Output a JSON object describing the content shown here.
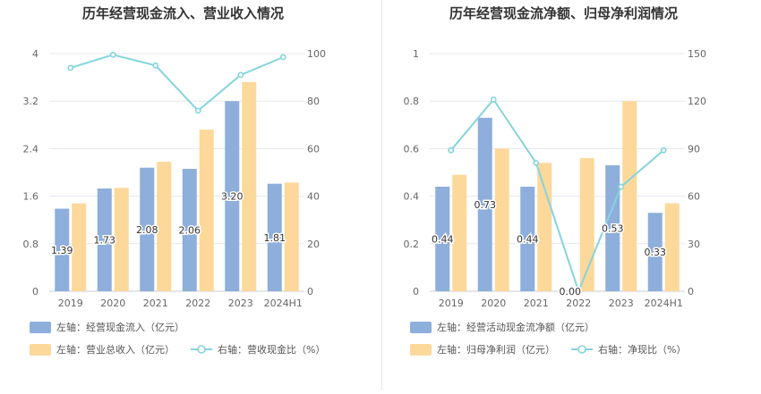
{
  "chart_data": [
    {
      "type": "bar",
      "title": "历年经营现金流入、营业收入情况",
      "categories": [
        "2019",
        "2020",
        "2021",
        "2022",
        "2023",
        "2024H1"
      ],
      "y_left_ticks": [
        "0",
        "0.8",
        "1.6",
        "2.4",
        "3.2",
        "4"
      ],
      "y_right_ticks": [
        "0",
        "20",
        "40",
        "60",
        "80",
        "100"
      ],
      "ylim_left": [
        0,
        4
      ],
      "ylim_right": [
        0,
        100
      ],
      "series": [
        {
          "name": "左轴：经营现金流入（亿元）",
          "kind": "bar",
          "axis": "left",
          "color": "#8eaedb",
          "values": [
            1.39,
            1.73,
            2.08,
            2.06,
            3.2,
            1.81
          ],
          "labels": [
            "1.39",
            "1.73",
            "2.08",
            "2.06",
            "3.20",
            "1.81"
          ]
        },
        {
          "name": "左轴：营业总收入（亿元）",
          "kind": "bar",
          "axis": "left",
          "color": "#fcd89b",
          "values": [
            1.48,
            1.74,
            2.18,
            2.72,
            3.52,
            1.83
          ]
        },
        {
          "name": "右轴：营收现金比（%）",
          "kind": "line",
          "axis": "right",
          "color": "#85d4dd",
          "values": [
            94,
            99.5,
            95,
            76,
            91,
            98.5
          ]
        }
      ],
      "grid": true,
      "legend_position": "bottom"
    },
    {
      "type": "bar",
      "title": "历年经营现金流净额、归母净利润情况",
      "categories": [
        "2019",
        "2020",
        "2021",
        "2022",
        "2023",
        "2024H1"
      ],
      "y_left_ticks": [
        "0",
        "0.2",
        "0.4",
        "0.6",
        "0.8",
        "1"
      ],
      "y_right_ticks": [
        "0",
        "30",
        "60",
        "90",
        "120",
        "150"
      ],
      "ylim_left": [
        0,
        1
      ],
      "ylim_right": [
        0,
        150
      ],
      "series": [
        {
          "name": "左轴：经营活动现金流净额（亿元）",
          "kind": "bar",
          "axis": "left",
          "color": "#8eaedb",
          "values": [
            0.44,
            0.73,
            0.44,
            0.0,
            0.53,
            0.33
          ],
          "labels": [
            "0.44",
            "0.73",
            "0.44",
            "0.00",
            "0.53",
            "0.33"
          ]
        },
        {
          "name": "左轴：归母净利润（亿元）",
          "kind": "bar",
          "axis": "left",
          "color": "#fcd89b",
          "values": [
            0.49,
            0.6,
            0.54,
            0.56,
            0.8,
            0.37
          ]
        },
        {
          "name": "右轴：净现比（%）",
          "kind": "line",
          "axis": "right",
          "color": "#85d4dd",
          "values": [
            89,
            121,
            81,
            0,
            66,
            89
          ]
        }
      ],
      "grid": true,
      "legend_position": "bottom"
    }
  ]
}
